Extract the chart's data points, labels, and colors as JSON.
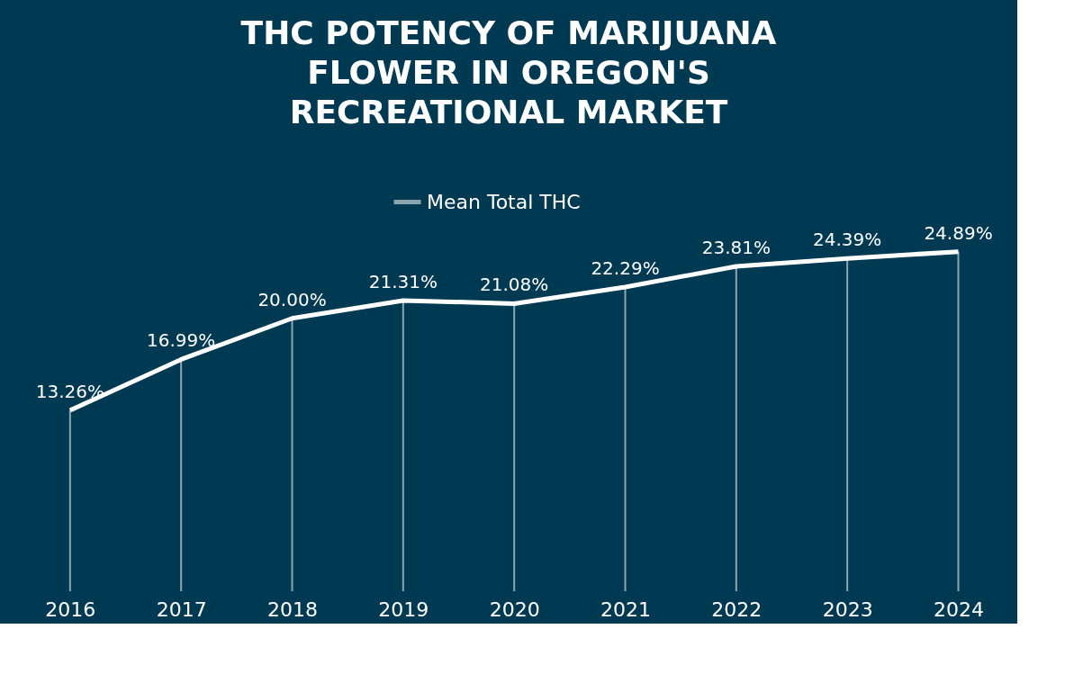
{
  "chart_data": {
    "type": "line",
    "title": "THC POTENCY OF MARIJUANA FLOWER IN OREGON'S RECREATIONAL MARKET",
    "categories": [
      "2016",
      "2017",
      "2018",
      "2019",
      "2020",
      "2021",
      "2022",
      "2023",
      "2024"
    ],
    "series": [
      {
        "name": "Mean Total THC",
        "color": "#ffffff",
        "values": [
          13.26,
          16.99,
          20.0,
          21.31,
          21.08,
          22.29,
          23.81,
          24.39,
          24.89
        ],
        "value_labels": [
          "13.26%",
          "16.99%",
          "20.00%",
          "21.31%",
          "21.08%",
          "22.29%",
          "23.81%",
          "24.39%",
          "24.89%"
        ]
      }
    ],
    "legend": "top",
    "grid": "x",
    "marker": "none",
    "line_style": "solid"
  }
}
